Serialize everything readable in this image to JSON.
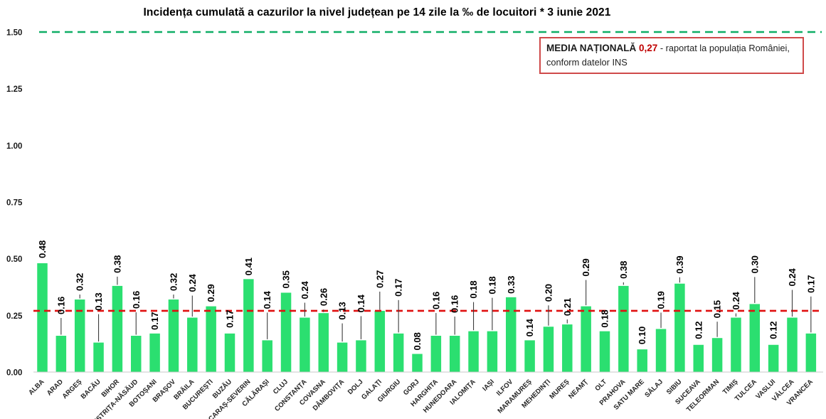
{
  "title": "Incidența cumulată a cazurilor la nivel județean pe 14 zile la ‰ de locuitori *  3 iunie 2021",
  "legend_box": {
    "label": "MEDIA NAȚIONALĂ ",
    "value": "0,27",
    "suffix": " - raportat la populația României, conform datelor INS",
    "value_color": "#c00000",
    "border_color": "#cf4a4a"
  },
  "chart_data": {
    "type": "bar",
    "title": "Incidența cumulată a cazurilor la nivel județean pe 14 zile la ‰ de locuitori * 3 iunie 2021",
    "categories": [
      "ALBA",
      "ARAD",
      "ARGEȘ",
      "BACĂU",
      "BIHOR",
      "BISTRIȚA-NĂSĂUD",
      "BOTOȘANI",
      "BRAȘOV",
      "BRĂILA",
      "BUCUREȘTI",
      "BUZĂU",
      "CARAȘ-SEVERIN",
      "CĂLĂRAȘI",
      "CLUJ",
      "CONSTANȚA",
      "COVASNA",
      "DÂMBOVIȚA",
      "DOLJ",
      "GALAȚI",
      "GIURGIU",
      "GORJ",
      "HARGHITA",
      "HUNEDOARA",
      "IALOMIȚA",
      "IAȘI",
      "ILFOV",
      "MARAMUREȘ",
      "MEHEDINȚI",
      "MUREȘ",
      "NEAMȚ",
      "OLT",
      "PRAHOVA",
      "SATU MARE",
      "SĂLAJ",
      "SIBIU",
      "SUCEAVA",
      "TELEORMAN",
      "TIMIȘ",
      "TULCEA",
      "VASLUI",
      "VÂLCEA",
      "VRANCEA"
    ],
    "values": [
      0.48,
      0.16,
      0.32,
      0.13,
      0.38,
      0.16,
      0.17,
      0.32,
      0.24,
      0.29,
      0.17,
      0.41,
      0.14,
      0.35,
      0.24,
      0.26,
      0.13,
      0.14,
      0.27,
      0.17,
      0.08,
      0.16,
      0.16,
      0.18,
      0.18,
      0.33,
      0.14,
      0.2,
      0.21,
      0.29,
      0.18,
      0.38,
      0.1,
      0.19,
      0.39,
      0.12,
      0.15,
      0.24,
      0.3,
      0.12,
      0.24,
      0.17
    ],
    "national_average": 0.27,
    "ylim": [
      0,
      1.5
    ],
    "yticks": [
      0.0,
      0.25,
      0.5,
      0.75,
      1.0,
      1.25,
      1.5
    ],
    "ytick_labels": [
      "0.00",
      "0.25",
      "0.50",
      "0.75",
      "1.00",
      "1.25",
      "1.50"
    ],
    "top_reference_line": 1.5,
    "grid": "off",
    "legend_position": "top-right",
    "colors": {
      "bar": "#2bdf70",
      "avg_line": "#e01010",
      "top_line": "#0fae66",
      "value_label": "#000000",
      "axis_line": "#c9c9c9",
      "leader_line": "#3c3c3c",
      "tick_label": "#1a1a1a"
    },
    "label_gaps": [
      4,
      27,
      9,
      42,
      15,
      35,
      2,
      9,
      33,
      3,
      5,
      2,
      41,
      3,
      23,
      7,
      29,
      36,
      29,
      49,
      2,
      34,
      29,
      43,
      49,
      2,
      2,
      32,
      9,
      39,
      2,
      7,
      4,
      25,
      11,
      5,
      25,
      8,
      40,
      5,
      41,
      54
    ]
  }
}
